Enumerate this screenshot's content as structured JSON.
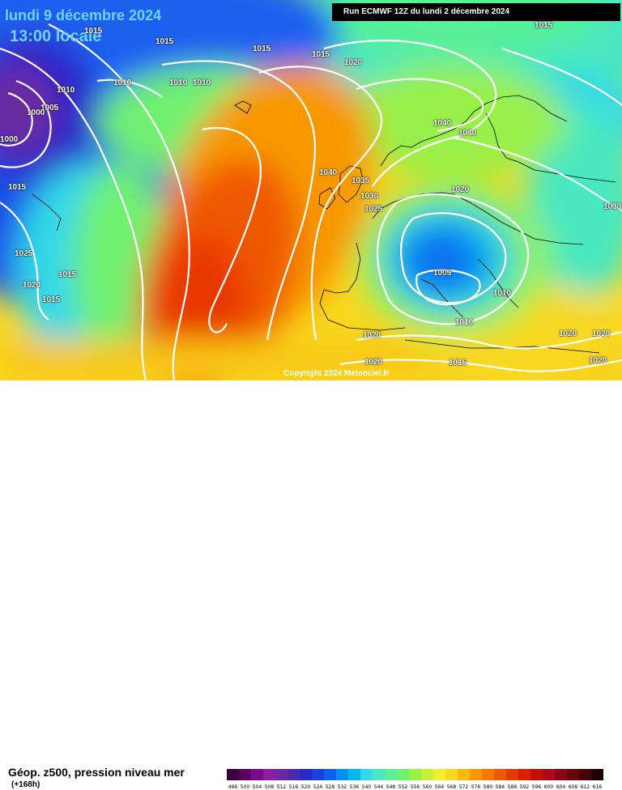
{
  "header": {
    "date": "lundi 9 décembre 2024",
    "time": "13:00 locale",
    "run": "Run ECMWF 12Z du lundi 2 décembre 2024"
  },
  "copyright": "Copyright 2024 Meteociel.fr",
  "footer": {
    "product": "Géop. z500, pression niveau mer",
    "lead": "(+168h)"
  },
  "scale": {
    "labels": [
      "496",
      "500",
      "504",
      "508",
      "512",
      "516",
      "520",
      "524",
      "528",
      "532",
      "536",
      "540",
      "544",
      "548",
      "552",
      "556",
      "560",
      "564",
      "568",
      "572",
      "576",
      "580",
      "584",
      "588",
      "592",
      "596",
      "600",
      "604",
      "608",
      "612",
      "616"
    ],
    "colors": [
      "#3a003a",
      "#5a0060",
      "#7a0a8a",
      "#8e1aa6",
      "#6a2aa0",
      "#4a2ab0",
      "#2a28c8",
      "#1a40e0",
      "#0a60f0",
      "#0090f0",
      "#00b8f0",
      "#30d8e8",
      "#48e8c0",
      "#58f098",
      "#70f070",
      "#98f048",
      "#c8f038",
      "#f0f030",
      "#f8d820",
      "#f8b810",
      "#f89800",
      "#f87800",
      "#f05800",
      "#e83800",
      "#d82000",
      "#c80c0c",
      "#b00818",
      "#8a0414",
      "#6a0410",
      "#4a020a",
      "#200004"
    ]
  },
  "isobars": [
    {
      "id": "iso-1015-a",
      "text": "1015"
    },
    {
      "id": "iso-1015-b",
      "text": "1015"
    },
    {
      "id": "iso-1015-c",
      "text": "1015"
    },
    {
      "id": "iso-1015-d",
      "text": "1015"
    },
    {
      "id": "iso-1020-a",
      "text": "1020"
    },
    {
      "id": "iso-1010-a",
      "text": "1010"
    },
    {
      "id": "iso-1010-b",
      "text": "1010"
    },
    {
      "id": "iso-1010-c",
      "text": "1010"
    },
    {
      "id": "iso-1010-d",
      "text": "1010"
    },
    {
      "id": "iso-1005-a",
      "text": "1005"
    },
    {
      "id": "iso-1000-a",
      "text": "1000"
    },
    {
      "id": "iso-1000-b",
      "text": "1000"
    },
    {
      "id": "iso-1015-e",
      "text": "1015"
    },
    {
      "id": "iso-1040-a",
      "text": "1040"
    },
    {
      "id": "iso-1040-b",
      "text": "1040"
    },
    {
      "id": "iso-1040-c",
      "text": "1040"
    },
    {
      "id": "iso-1035-a",
      "text": "1035"
    },
    {
      "id": "iso-1030-a",
      "text": "1030"
    },
    {
      "id": "iso-1025-a",
      "text": "1025"
    },
    {
      "id": "iso-1020-b",
      "text": "1020"
    },
    {
      "id": "iso-1025-b",
      "text": "1025"
    },
    {
      "id": "iso-1015-f",
      "text": "1015"
    },
    {
      "id": "iso-1020-c",
      "text": "1020"
    },
    {
      "id": "iso-1015-g",
      "text": "1015"
    },
    {
      "id": "iso-1005-b",
      "text": "1005"
    },
    {
      "id": "iso-1010-e",
      "text": "1010"
    },
    {
      "id": "iso-1010-f",
      "text": "1010"
    },
    {
      "id": "iso-1020-d",
      "text": "1020"
    },
    {
      "id": "iso-1020-e",
      "text": "1020"
    },
    {
      "id": "iso-1015-h",
      "text": "1015"
    },
    {
      "id": "iso-1020-f",
      "text": "1020"
    },
    {
      "id": "iso-1020-g",
      "text": "1020"
    },
    {
      "id": "iso-1020-h",
      "text": "1020"
    },
    {
      "id": "iso-1030-b",
      "text": "1030"
    },
    {
      "id": "iso-1015-i",
      "text": "1015"
    }
  ]
}
